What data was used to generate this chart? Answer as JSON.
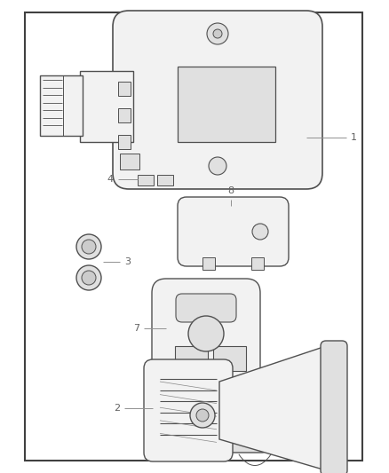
{
  "fig_width": 4.38,
  "fig_height": 5.33,
  "dpi": 100,
  "bg_color": "#ffffff",
  "border_color": "#404040",
  "stroke": "#505050",
  "fill_light": "#f2f2f2",
  "fill_mid": "#e0e0e0",
  "fill_dark": "#cccccc",
  "label_color": "#606060",
  "label_fs": 8.0,
  "leader_color": "#909090",
  "leader_lw": 0.7
}
